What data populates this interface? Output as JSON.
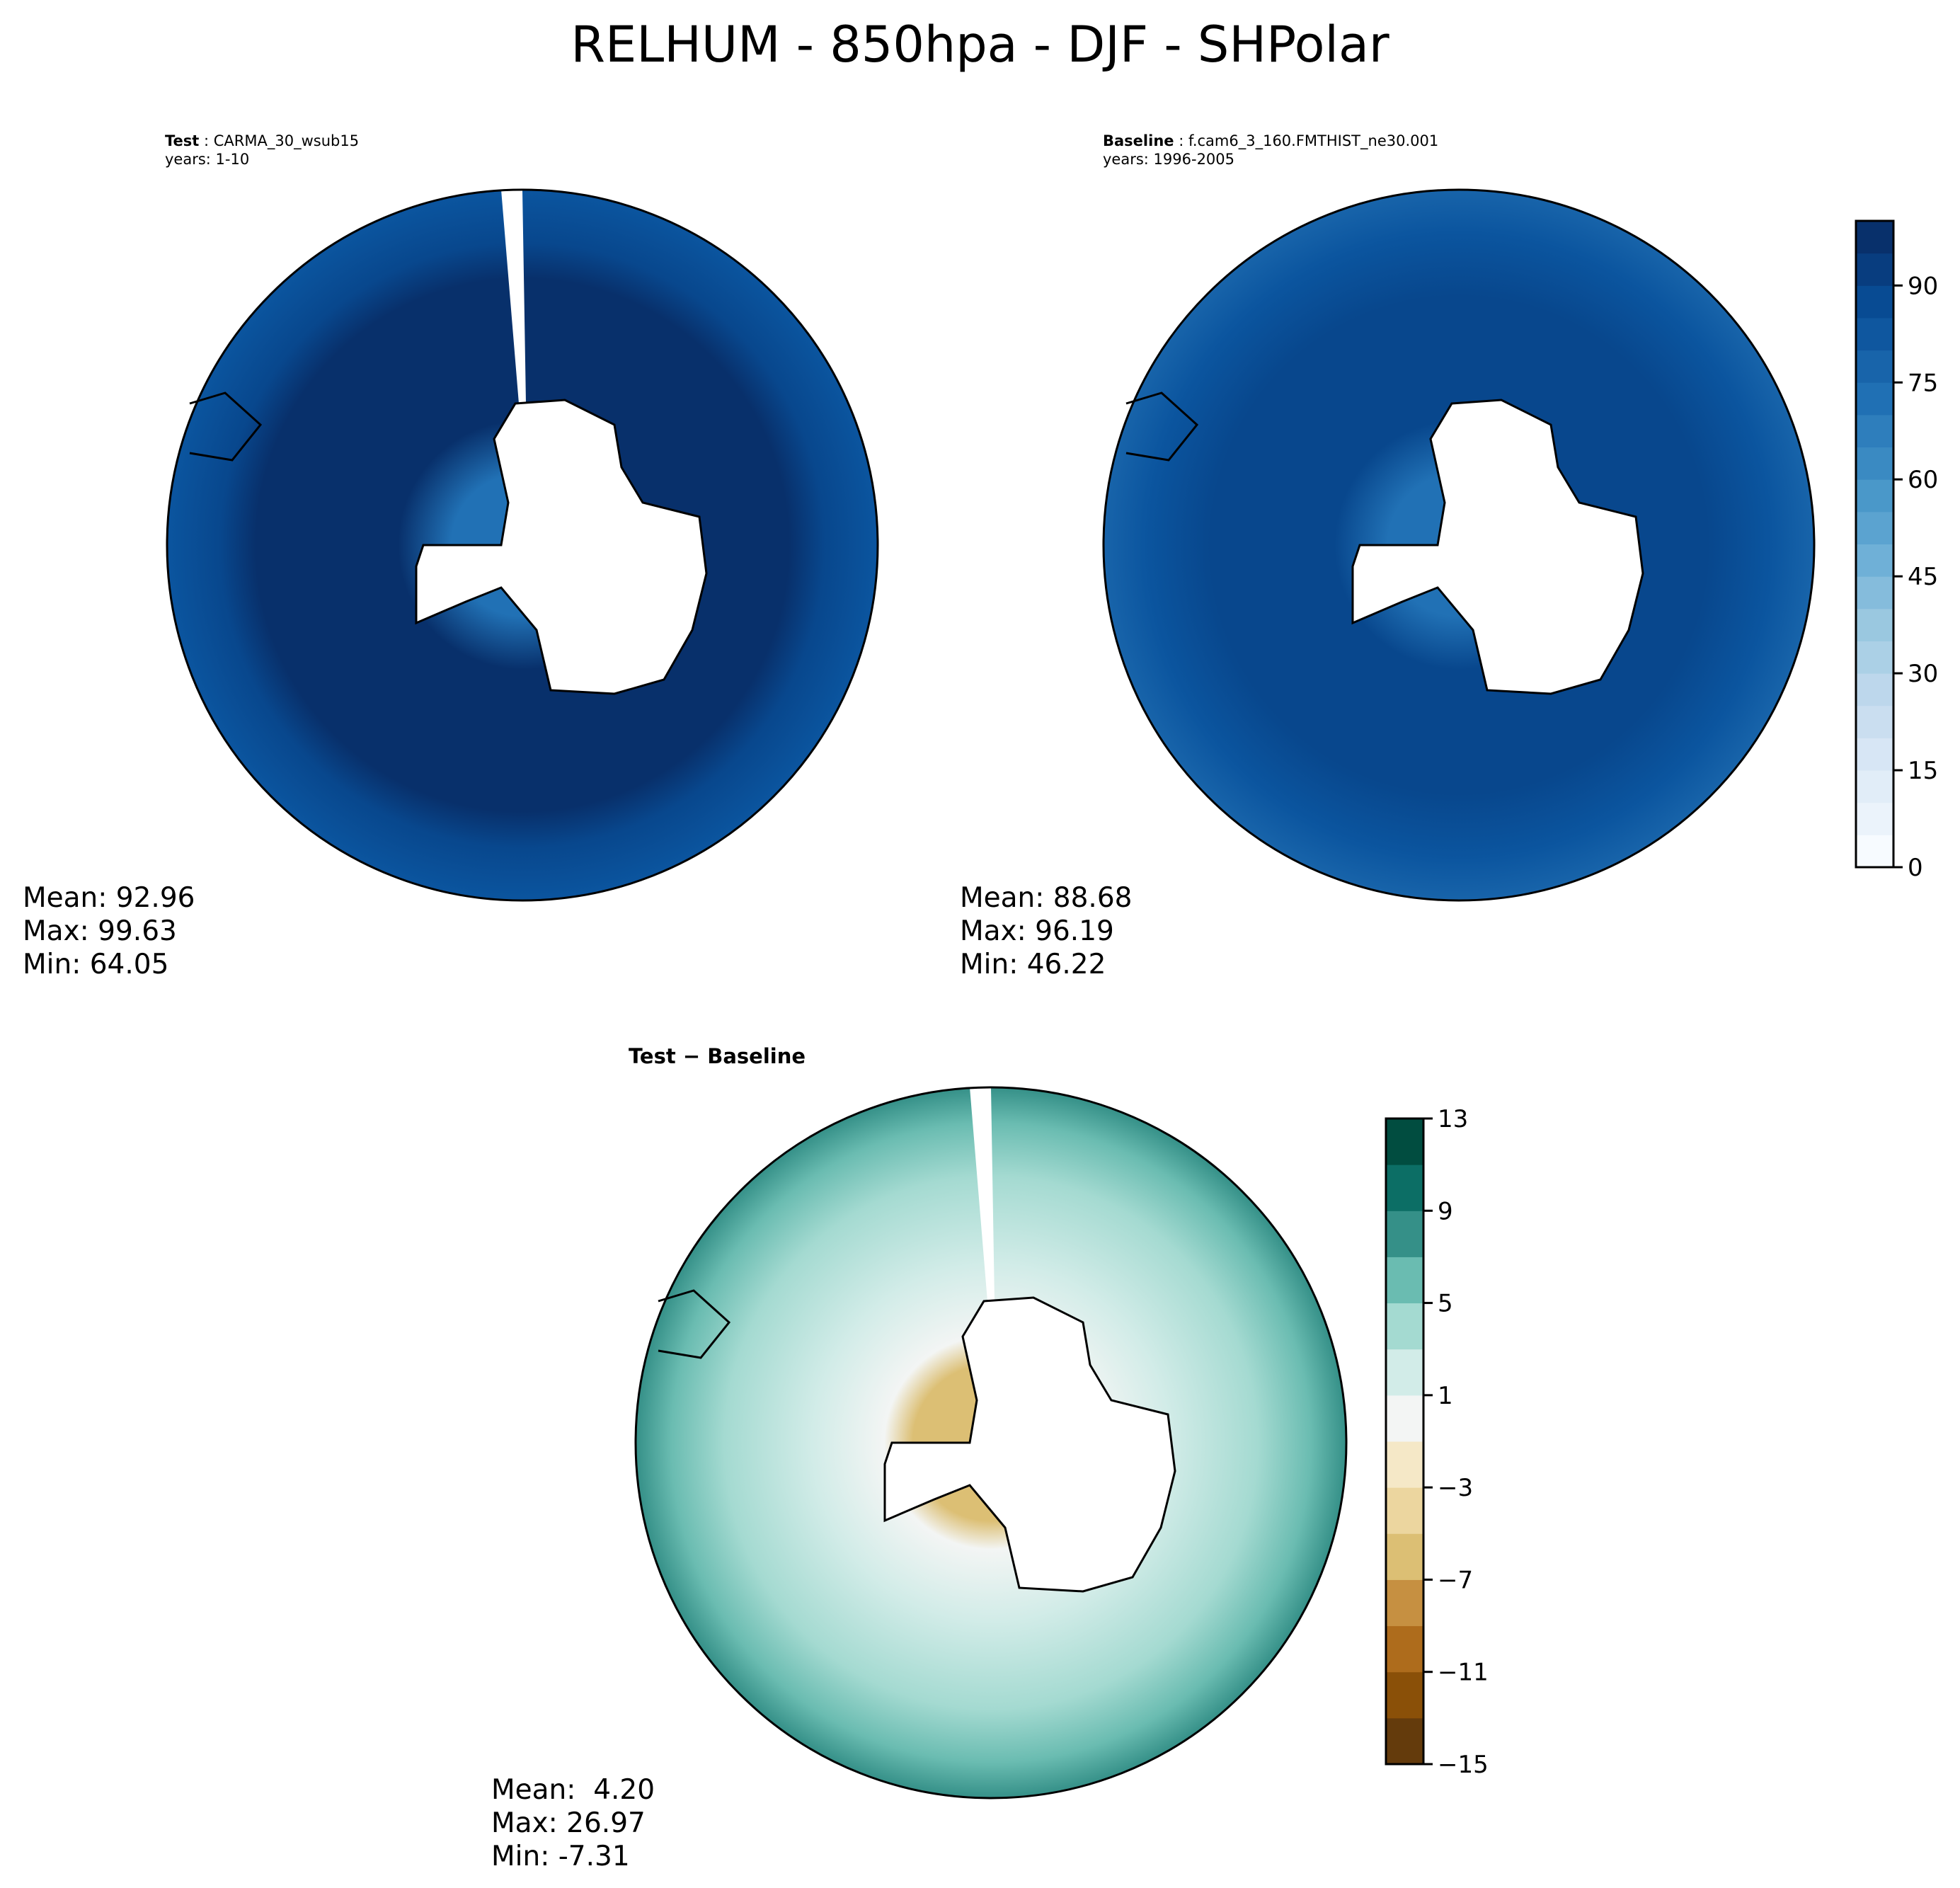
{
  "chart_data": [
    {
      "type": "heatmap",
      "projection": "south-polar-stereographic",
      "header_label": "Test",
      "header_value": "CARMA_30_wsub15",
      "years": "years: 1-10",
      "stats": {
        "mean": "Mean: 92.96",
        "max": "Max: 99.63",
        "min": "Min: 64.05"
      },
      "colors": [
        "#08306b",
        "#08478d",
        "#0b559f",
        "#2171b5",
        "#4292c6"
      ]
    },
    {
      "type": "heatmap",
      "projection": "south-polar-stereographic",
      "header_label": "Baseline",
      "header_value": "f.cam6_3_160.FMTHIST_ne30.001",
      "years": "years: 1996-2005",
      "stats": {
        "mean": "Mean: 88.68",
        "max": "Max: 96.19",
        "min": "Min: 46.22"
      },
      "colorbar": {
        "range": [
          0,
          100
        ],
        "step": 5,
        "ticks": [
          "0",
          "15",
          "30",
          "45",
          "60",
          "75",
          "90"
        ],
        "colormap": "Blues"
      }
    },
    {
      "type": "heatmap",
      "projection": "south-polar-stereographic",
      "title": "Test − Baseline",
      "stats": {
        "mean": "Mean:  4.20",
        "max": "Max: 26.97",
        "min": "Min: -7.31"
      },
      "colorbar": {
        "range": [
          -15,
          13
        ],
        "step": 2,
        "ticks": [
          "−15",
          "−11",
          "−7",
          "−3",
          "1",
          "5",
          "9",
          "13"
        ],
        "colormap": "BrBG"
      }
    }
  ],
  "title": "RELHUM - 850hpa - DJF - SHPolar",
  "blues": [
    "#f7fbff",
    "#ebf3fb",
    "#e1edf8",
    "#d7e6f5",
    "#cadef0",
    "#bdd7ec",
    "#abd0e6",
    "#9ac8e0",
    "#85bcdc",
    "#6fb0d7",
    "#5ba3d0",
    "#4a98c9",
    "#3a8ac2",
    "#2e7ebc",
    "#2070b4",
    "#1864aa",
    "#0f579f",
    "#084b93",
    "#083d7f",
    "#08306b"
  ],
  "brbg": [
    "#643b0c",
    "#8a5008",
    "#ae6c1c",
    "#c69041",
    "#dcbf74",
    "#ecd69f",
    "#f5e8c7",
    "#f3f5f4",
    "#d2ece8",
    "#a4dad1",
    "#6abcb1",
    "#359088",
    "#0c6e65",
    "#014d40"
  ]
}
